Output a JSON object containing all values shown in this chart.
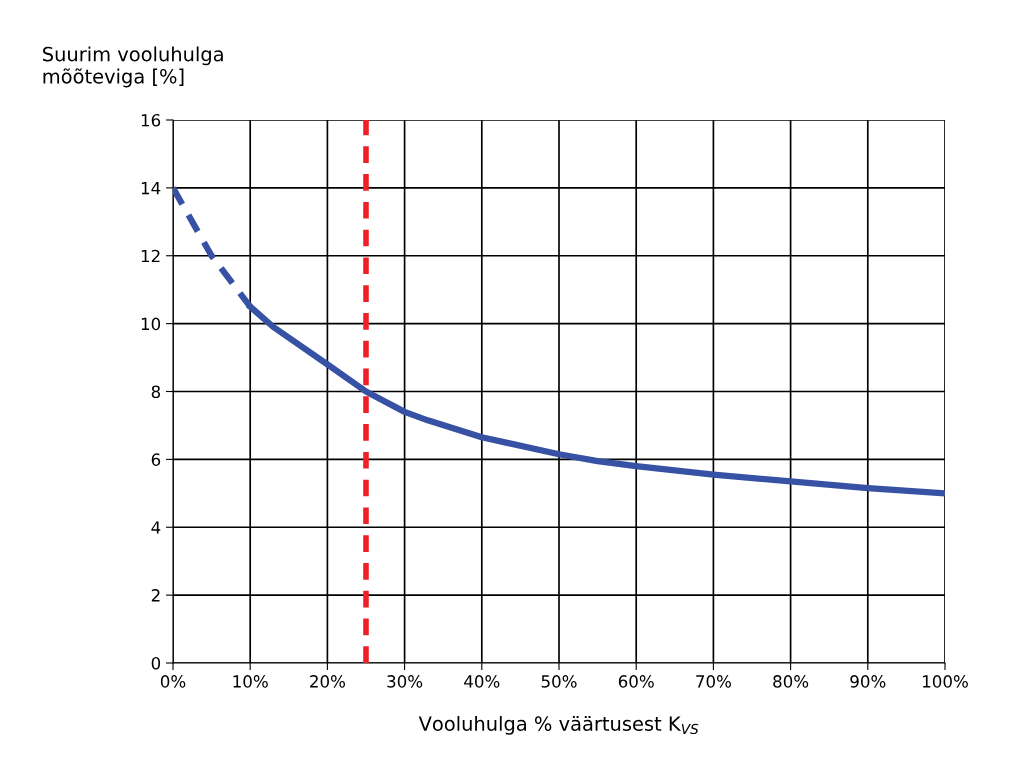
{
  "chart_data": {
    "type": "line",
    "xlabel": "Vooluhulga % väärtusest K$_{VS}$",
    "ylabel": "Suurim vooluhulga\nmõõteviga [%]",
    "series": [
      {
        "color": "#3752a4",
        "line_style": "dashed",
        "x": [
          0,
          5,
          10
        ],
        "values": [
          14,
          12.0,
          10.5
        ]
      },
      {
        "color": "#3752a4",
        "line_style": "solid",
        "x": [
          10,
          13,
          20,
          25,
          30,
          33,
          40,
          43,
          50,
          55,
          60,
          70,
          80,
          90,
          100
        ],
        "values": [
          10.5,
          9.9,
          8.8,
          8.0,
          7.4,
          7.15,
          6.65,
          6.5,
          6.15,
          5.95,
          5.8,
          5.55,
          5.35,
          5.15,
          5.0
        ]
      }
    ],
    "xlim": [
      0,
      100
    ],
    "xticks": [
      {
        "value": 0,
        "label": "0%"
      },
      {
        "value": 10,
        "label": "10%"
      },
      {
        "value": 20,
        "label": "20%"
      },
      {
        "value": 30,
        "label": "30%"
      },
      {
        "value": 40,
        "label": "40%"
      },
      {
        "value": 50,
        "label": "50%"
      },
      {
        "value": 60,
        "label": "60%"
      },
      {
        "value": 70,
        "label": "70%"
      },
      {
        "value": 80,
        "label": "80%"
      },
      {
        "value": 90,
        "label": "90%"
      },
      {
        "value": 100,
        "label": "100%"
      }
    ],
    "ylim": [
      0,
      16
    ],
    "yticks": [
      0,
      2,
      4,
      6,
      8,
      10,
      12,
      14,
      16
    ],
    "grid": true,
    "marker": "none",
    "ref_lines": [
      {
        "axis": "x",
        "value": 25,
        "color": "#ee2027",
        "line_style": "dashed"
      }
    ]
  }
}
